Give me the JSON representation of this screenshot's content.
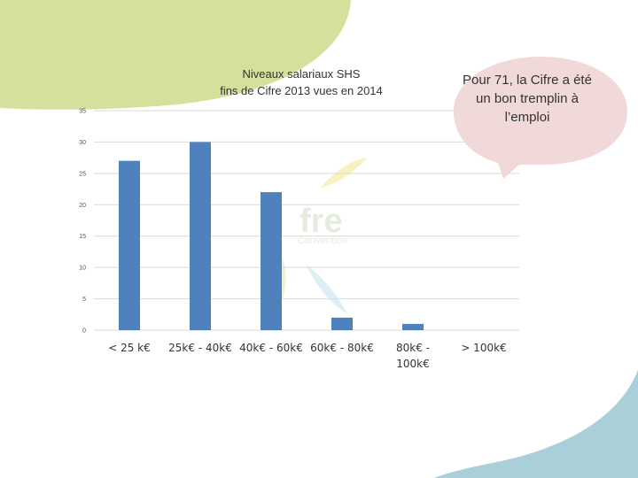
{
  "callout": {
    "text": "Pour 71, la Cifre a été un bon tremplin à l’emploi"
  },
  "watermark": {
    "text": "fre",
    "subtext": "Convention"
  },
  "colors": {
    "bar": "#4f81bd",
    "top_decoration": "#d4e09b",
    "bottom_decoration": "#a9cfd9",
    "callout_fill": "#f2d9d9",
    "gridline": "#d9d9d9"
  },
  "chart_data": {
    "type": "bar",
    "title": "Niveaux salariaux SHS fins de Cifre 2013 vues en 2014",
    "title_lines": [
      "Niveaux salariaux SHS",
      "fins de Cifre 2013 vues en 2014"
    ],
    "categories": [
      "< 25 k€",
      "25k€ - 40k€",
      "40k€ - 60k€",
      "60k€ - 80k€",
      "80k€ - 100k€",
      "> 100k€"
    ],
    "category_lines": [
      [
        "< 25 k€"
      ],
      [
        "25k€ - 40k€"
      ],
      [
        "40k€ - 60k€"
      ],
      [
        "60k€ - 80k€"
      ],
      [
        "80k€ -",
        "100k€"
      ],
      [
        "> 100k€"
      ]
    ],
    "values": [
      27,
      30,
      22,
      2,
      1,
      0
    ],
    "ylim": [
      0,
      35
    ],
    "yticks": [
      0,
      5,
      10,
      15,
      20,
      25,
      30,
      35
    ],
    "grid": true,
    "legend": "none",
    "xlabel": "",
    "ylabel": ""
  }
}
